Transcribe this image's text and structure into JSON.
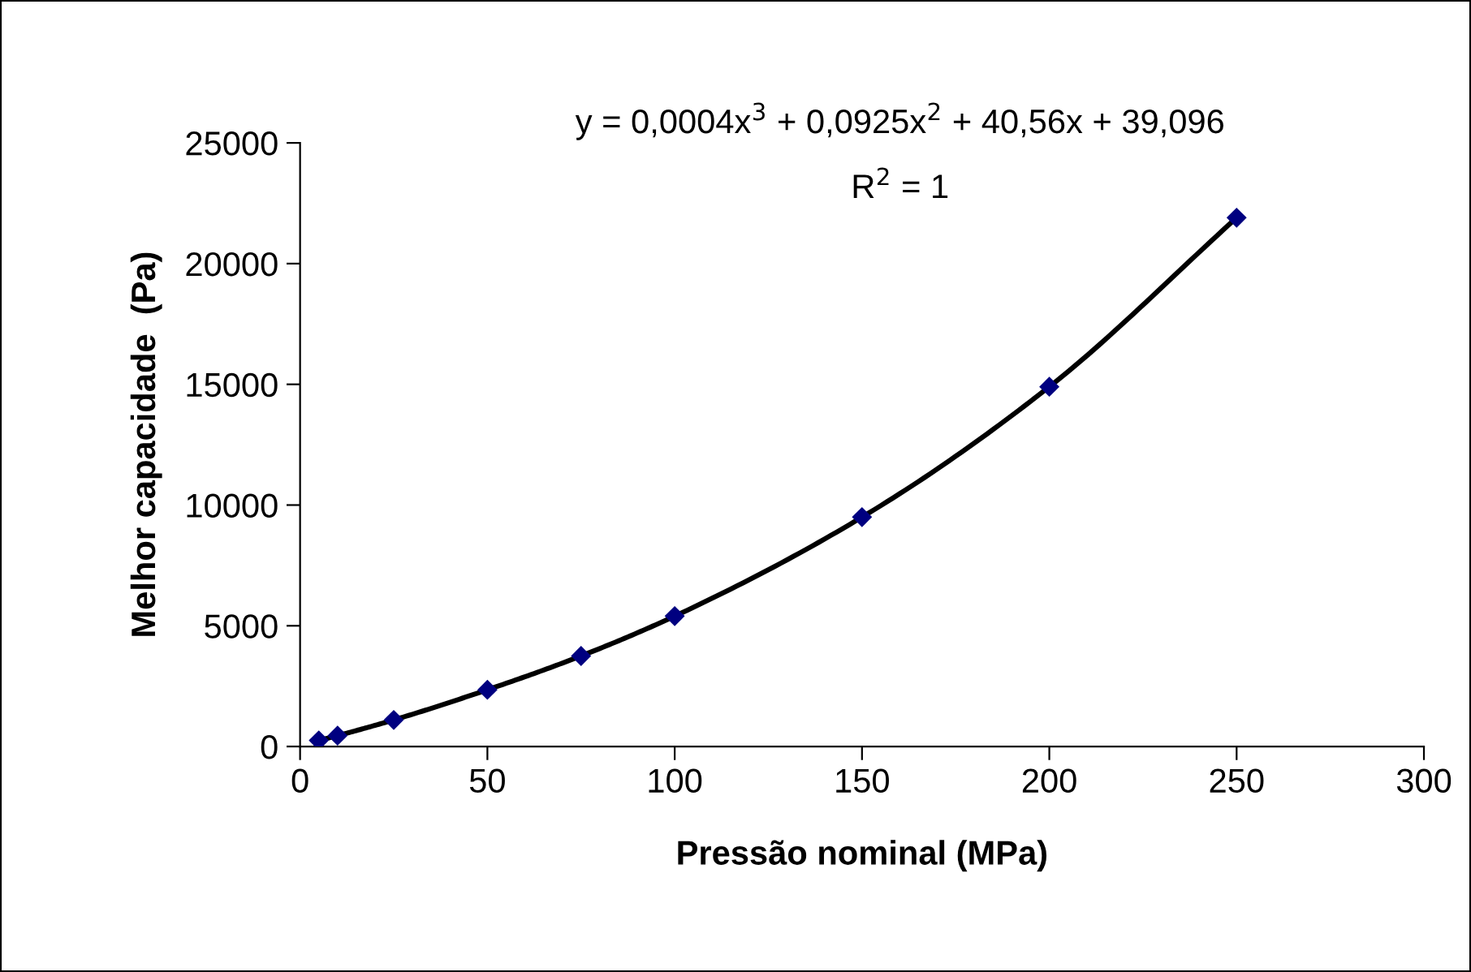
{
  "chart_data": {
    "type": "scatter",
    "xlabel": "Pressão nominal (MPa)",
    "ylabel": "Melhor capacidade  (Pa)",
    "xlim": [
      0,
      300
    ],
    "xticks": [
      0,
      50,
      100,
      150,
      200,
      250,
      300
    ],
    "ylim": [
      0,
      25000
    ],
    "yticks": [
      0,
      5000,
      10000,
      15000,
      20000,
      25000
    ],
    "grid": false,
    "annotations": [
      "y = 0,0004x$^{3}$ + 0,0925x$^{2}$ + 40,56x + 39,096",
      "R$^{2}$ = 1"
    ],
    "series": [
      {
        "type": "line",
        "color": "#000000",
        "marker": "none",
        "x": [
          5,
          10,
          25,
          50,
          75,
          100,
          150,
          200,
          250
        ],
        "values": [
          250,
          450,
          1100,
          2350,
          3750,
          5400,
          9500,
          14900,
          21900
        ]
      },
      {
        "color": "#000080",
        "marker": "diamond",
        "x": [
          5,
          10,
          25,
          50,
          75,
          100,
          150,
          200,
          250
        ],
        "values": [
          250,
          450,
          1100,
          2350,
          3750,
          5400,
          9500,
          14900,
          21900
        ]
      }
    ]
  }
}
